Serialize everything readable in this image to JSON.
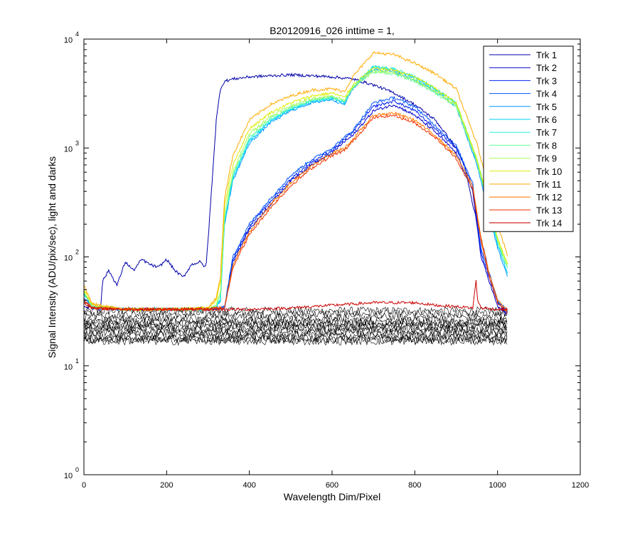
{
  "chart_data": {
    "type": "line",
    "title": "B20120916_026 inttime = 1,",
    "xlabel": "Wavelength Dim/Pixel",
    "ylabel": "Signal Intensity (ADU/pix/sec), light and darks",
    "xlim": [
      0,
      1200
    ],
    "ylim": [
      1,
      10000
    ],
    "yscale": "log",
    "xticks": [
      0,
      200,
      400,
      600,
      800,
      1000,
      1200
    ],
    "xtick_labels": [
      "0",
      "200",
      "400",
      "600",
      "800",
      "1000",
      "1200"
    ],
    "yticks": [
      1,
      10,
      100,
      1000,
      10000
    ],
    "ytick_labels": [
      {
        "base": "10",
        "exp": "0"
      },
      {
        "base": "10",
        "exp": "1"
      },
      {
        "base": "10",
        "exp": "2"
      },
      {
        "base": "10",
        "exp": "3"
      },
      {
        "base": "10",
        "exp": "4"
      }
    ],
    "legend_position": "top-right",
    "series": [
      {
        "name": "Trk 1",
        "color": "#0000aa",
        "x": [
          0,
          40,
          45,
          60,
          80,
          100,
          120,
          140,
          160,
          180,
          200,
          220,
          240,
          260,
          280,
          295,
          300,
          310,
          320,
          330,
          340,
          360,
          400,
          450,
          500,
          550,
          600,
          650,
          700,
          750,
          800,
          850,
          900,
          920,
          940,
          960,
          980,
          1000,
          1020
        ],
        "y": [
          35,
          33,
          60,
          75,
          55,
          90,
          75,
          95,
          85,
          80,
          95,
          75,
          65,
          85,
          90,
          80,
          140,
          500,
          1800,
          3500,
          4100,
          4300,
          4500,
          4600,
          4700,
          4600,
          4500,
          4300,
          3800,
          3200,
          2500,
          1800,
          1000,
          700,
          300,
          150,
          70,
          40,
          30
        ]
      },
      {
        "name": "Trk 2",
        "color": "#0000cc",
        "x": [
          0,
          20,
          100,
          200,
          300,
          320,
          340,
          360,
          400,
          450,
          500,
          550,
          600,
          630,
          650,
          700,
          750,
          800,
          850,
          900,
          940,
          960,
          980,
          1000,
          1025
        ],
        "y": [
          40,
          34,
          33,
          33,
          33,
          34,
          34,
          90,
          180,
          300,
          500,
          700,
          900,
          1150,
          1300,
          2200,
          2500,
          2000,
          1400,
          900,
          400,
          100,
          60,
          35,
          30
        ]
      },
      {
        "name": "Trk 3",
        "color": "#0022ee",
        "x": [
          0,
          20,
          100,
          200,
          300,
          320,
          340,
          360,
          400,
          450,
          500,
          550,
          600,
          630,
          650,
          700,
          750,
          800,
          850,
          900,
          940,
          960,
          980,
          1000,
          1025
        ],
        "y": [
          40,
          34,
          33,
          33,
          33,
          34,
          34,
          95,
          190,
          320,
          520,
          740,
          950,
          1200,
          1400,
          2400,
          2700,
          2200,
          1500,
          1000,
          450,
          110,
          65,
          38,
          31
        ]
      },
      {
        "name": "Trk 4",
        "color": "#0055ff",
        "x": [
          0,
          20,
          100,
          200,
          300,
          320,
          340,
          360,
          400,
          450,
          500,
          550,
          600,
          630,
          650,
          700,
          750,
          800,
          850,
          900,
          940,
          960,
          980,
          1000,
          1025
        ],
        "y": [
          42,
          34,
          33,
          33,
          33,
          34,
          35,
          100,
          200,
          340,
          560,
          780,
          1000,
          1250,
          1450,
          2600,
          2900,
          2400,
          1600,
          1050,
          480,
          120,
          70,
          40,
          32
        ]
      },
      {
        "name": "Trk 5",
        "color": "#0099ff",
        "x": [
          0,
          20,
          100,
          200,
          300,
          320,
          330,
          340,
          360,
          400,
          450,
          500,
          550,
          600,
          630,
          650,
          700,
          750,
          800,
          850,
          900,
          950,
          980,
          1000,
          1025
        ],
        "y": [
          45,
          35,
          33,
          33,
          33,
          35,
          40,
          200,
          500,
          1100,
          1700,
          2200,
          2600,
          2800,
          2500,
          3500,
          5300,
          5000,
          4200,
          3300,
          2400,
          700,
          250,
          120,
          65
        ]
      },
      {
        "name": "Trk 6",
        "color": "#00ccff",
        "x": [
          0,
          20,
          100,
          200,
          300,
          320,
          330,
          340,
          360,
          400,
          450,
          500,
          550,
          600,
          630,
          650,
          700,
          750,
          800,
          850,
          900,
          950,
          980,
          1000,
          1025
        ],
        "y": [
          46,
          35,
          33,
          33,
          33,
          35,
          40,
          210,
          520,
          1150,
          1750,
          2250,
          2650,
          2850,
          2600,
          3600,
          5500,
          5200,
          4400,
          3450,
          2550,
          750,
          270,
          130,
          70
        ]
      },
      {
        "name": "Trk 7",
        "color": "#22eedd",
        "x": [
          0,
          20,
          100,
          200,
          300,
          320,
          330,
          340,
          360,
          400,
          450,
          500,
          550,
          600,
          630,
          650,
          700,
          750,
          800,
          850,
          900,
          950,
          980,
          1000,
          1025
        ],
        "y": [
          47,
          35,
          33,
          33,
          33,
          35,
          42,
          220,
          540,
          1200,
          1800,
          2300,
          2700,
          2900,
          2650,
          3700,
          5600,
          5300,
          4500,
          3500,
          2600,
          800,
          290,
          140,
          75
        ]
      },
      {
        "name": "Trk 8",
        "color": "#66ff99",
        "x": [
          0,
          20,
          100,
          200,
          300,
          320,
          330,
          340,
          360,
          400,
          450,
          500,
          550,
          600,
          630,
          650,
          700,
          750,
          800,
          850,
          900,
          950,
          980,
          1000,
          1025
        ],
        "y": [
          48,
          35,
          33,
          33,
          33,
          36,
          45,
          230,
          560,
          1250,
          1850,
          2350,
          2750,
          2950,
          2700,
          3600,
          5000,
          4800,
          4100,
          3200,
          2400,
          750,
          280,
          140,
          75
        ]
      },
      {
        "name": "Trk 9",
        "color": "#aaff55",
        "x": [
          0,
          20,
          100,
          200,
          300,
          320,
          330,
          340,
          360,
          400,
          450,
          500,
          550,
          600,
          630,
          650,
          700,
          750,
          800,
          850,
          900,
          950,
          980,
          1000,
          1025
        ],
        "y": [
          49,
          35,
          33,
          33,
          33,
          36,
          48,
          260,
          600,
          1350,
          1950,
          2450,
          2850,
          3000,
          2750,
          3650,
          5100,
          4900,
          4200,
          3300,
          2450,
          780,
          290,
          145,
          80
        ]
      },
      {
        "name": "Trk 10",
        "color": "#ddee00",
        "x": [
          0,
          20,
          100,
          200,
          300,
          320,
          330,
          340,
          360,
          400,
          450,
          500,
          550,
          600,
          630,
          650,
          700,
          750,
          800,
          850,
          900,
          950,
          980,
          1000,
          1025
        ],
        "y": [
          50,
          36,
          33,
          33,
          34,
          40,
          60,
          300,
          700,
          1500,
          2100,
          2600,
          3000,
          3200,
          2900,
          3800,
          5400,
          5200,
          4500,
          3500,
          2600,
          800,
          300,
          150,
          85
        ]
      },
      {
        "name": "Trk 11",
        "color": "#ffaa00",
        "x": [
          0,
          20,
          100,
          200,
          300,
          320,
          330,
          340,
          360,
          400,
          450,
          500,
          550,
          600,
          630,
          650,
          700,
          750,
          800,
          850,
          900,
          950,
          980,
          1000,
          1025
        ],
        "y": [
          55,
          37,
          33,
          33,
          34,
          42,
          65,
          350,
          850,
          1800,
          2500,
          3000,
          3400,
          3500,
          3300,
          4500,
          7500,
          7200,
          6000,
          4800,
          3500,
          1100,
          400,
          200,
          100
        ]
      },
      {
        "name": "Trk 12",
        "color": "#ff7700",
        "x": [
          0,
          20,
          100,
          200,
          300,
          320,
          340,
          360,
          400,
          450,
          500,
          550,
          600,
          630,
          650,
          700,
          750,
          800,
          850,
          900,
          940,
          960,
          980,
          1000,
          1025
        ],
        "y": [
          40,
          34,
          33,
          33,
          33,
          34,
          34,
          85,
          170,
          300,
          480,
          680,
          900,
          1000,
          1200,
          2000,
          2100,
          1800,
          1300,
          850,
          450,
          150,
          70,
          40,
          32
        ]
      },
      {
        "name": "Trk 13",
        "color": "#ee3300",
        "x": [
          0,
          20,
          100,
          200,
          300,
          320,
          340,
          360,
          400,
          450,
          500,
          550,
          600,
          630,
          650,
          700,
          750,
          800,
          850,
          900,
          940,
          960,
          980,
          1000,
          1025
        ],
        "y": [
          40,
          34,
          33,
          33,
          33,
          34,
          34,
          80,
          160,
          280,
          450,
          650,
          850,
          950,
          1150,
          1900,
          2000,
          1700,
          1250,
          800,
          420,
          140,
          65,
          38,
          31
        ]
      },
      {
        "name": "Trk 14",
        "color": "#cc0000",
        "x": [
          0,
          20,
          100,
          200,
          300,
          400,
          500,
          600,
          700,
          750,
          800,
          850,
          900,
          940,
          948,
          952,
          960,
          1000,
          1025
        ],
        "y": [
          38,
          34,
          33,
          33,
          33,
          33,
          34,
          36,
          38,
          38,
          38,
          36,
          35,
          34,
          60,
          40,
          34,
          33,
          33
        ]
      }
    ],
    "darks": {
      "color": "#000000",
      "count": 14,
      "x_range": [
        0,
        1025
      ],
      "levels": [
        32,
        30,
        28,
        26,
        25,
        24,
        23,
        22,
        21,
        20,
        19,
        18,
        17.5,
        17
      ]
    }
  }
}
